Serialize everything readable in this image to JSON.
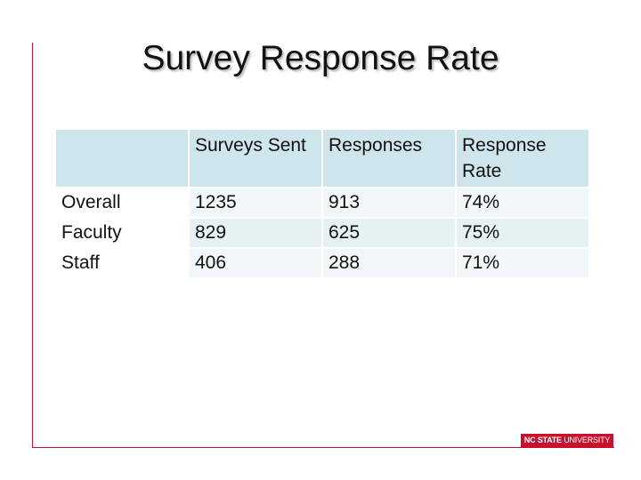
{
  "header": {
    "title": "Survey Response Rate"
  },
  "table": {
    "columns": [
      "Surveys Sent",
      "Responses",
      "Response Rate"
    ],
    "rows": [
      [
        "Overall",
        "1235",
        "913",
        "74%"
      ],
      [
        "Faculty",
        "829",
        "625",
        "75%"
      ],
      [
        "Staff",
        "406",
        "288",
        "71%"
      ]
    ]
  },
  "footer": {
    "logo_bold": "NC STATE",
    "logo_text": "UNIVERSITY"
  }
}
